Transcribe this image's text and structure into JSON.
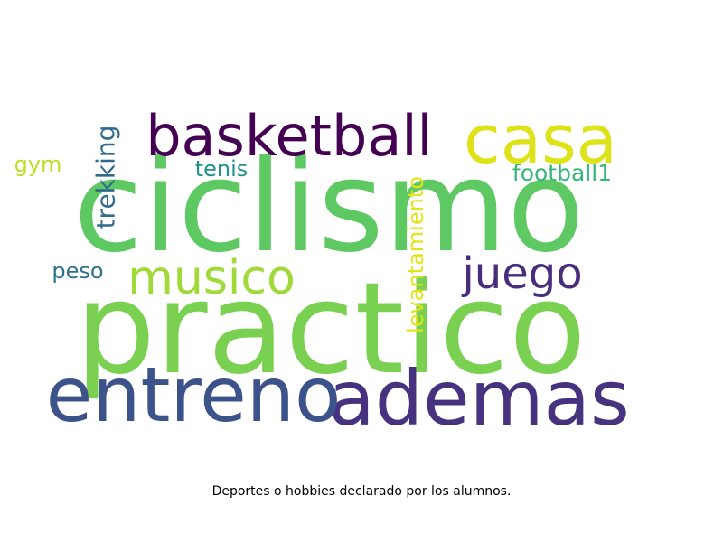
{
  "chart_data": {
    "type": "wordcloud",
    "caption": "Deportes o hobbies declarado por los alumnos.",
    "colormap": "viridis",
    "background": "#ffffff",
    "words": [
      {
        "text": "practico",
        "color": "#7ad151",
        "rotated": false
      },
      {
        "text": "ciclismo",
        "color": "#5ec962",
        "rotated": false
      },
      {
        "text": "ademas",
        "color": "#46327e",
        "rotated": false
      },
      {
        "text": "entreno",
        "color": "#3b528b",
        "rotated": false
      },
      {
        "text": "casa",
        "color": "#dde318",
        "rotated": false
      },
      {
        "text": "basketball",
        "color": "#440154",
        "rotated": false
      },
      {
        "text": "musico",
        "color": "#a0da39",
        "rotated": false
      },
      {
        "text": "juego",
        "color": "#472d7b",
        "rotated": false
      },
      {
        "text": "trekking",
        "color": "#31688e",
        "rotated": true
      },
      {
        "text": "levantamiento",
        "color": "#e2e418",
        "rotated": true
      },
      {
        "text": "football1",
        "color": "#35b779",
        "rotated": false
      },
      {
        "text": "tenis",
        "color": "#21918c",
        "rotated": false
      },
      {
        "text": "peso",
        "color": "#2c728e",
        "rotated": false
      },
      {
        "text": "gym",
        "color": "#bddf26",
        "rotated": false
      }
    ]
  }
}
